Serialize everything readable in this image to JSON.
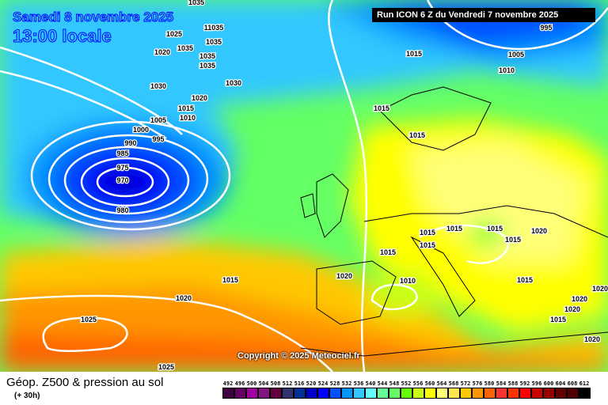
{
  "header": {
    "date": "Samedi 8 novembre 2025",
    "time": "13:00 locale",
    "run": "Run ICON 6 Z du Vendredi 7 novembre 2025"
  },
  "copyright": "Copyright © 2025 Meteociel.fr",
  "footer": {
    "title": "Géop. Z500 & pression au sol",
    "subtitle": "(+ 30h)"
  },
  "legend": {
    "labels": [
      "492",
      "496",
      "500",
      "504",
      "508",
      "512",
      "516",
      "520",
      "524",
      "528",
      "532",
      "536",
      "540",
      "544",
      "548",
      "552",
      "556",
      "560",
      "564",
      "568",
      "572",
      "576",
      "580",
      "584",
      "588",
      "592",
      "596",
      "600",
      "604",
      "608",
      "612"
    ],
    "colors": [
      "#3d0040",
      "#640064",
      "#a000a0",
      "#821482",
      "#640040",
      "#32326e",
      "#003296",
      "#0000c8",
      "#0000ff",
      "#0050ff",
      "#0096ff",
      "#32c8ff",
      "#64ffff",
      "#64ff96",
      "#64ff64",
      "#64ff00",
      "#c8ff14",
      "#ffff00",
      "#ffff78",
      "#ffe650",
      "#ffc800",
      "#ff9600",
      "#ff6400",
      "#ff3232",
      "#ff3200",
      "#ff0000",
      "#c80000",
      "#960000",
      "#640000",
      "#500000",
      "#000000"
    ]
  },
  "isobars": [
    "1035",
    "1025",
    "11035",
    "1035",
    "1020",
    "1035",
    "1035",
    "1035",
    "1030",
    "1030",
    "1020",
    "1015",
    "1010",
    "1005",
    "1000",
    "995",
    "990",
    "985",
    "975",
    "970",
    "980",
    "1015",
    "1020",
    "1025",
    "1025",
    "1015",
    "1015",
    "1010",
    "1005",
    "995",
    "1015",
    "1015",
    "1015",
    "1015",
    "1015",
    "1015",
    "1020",
    "1015",
    "1010",
    "1015",
    "1020",
    "1020",
    "1020",
    "1020",
    "1015",
    "1020"
  ]
}
